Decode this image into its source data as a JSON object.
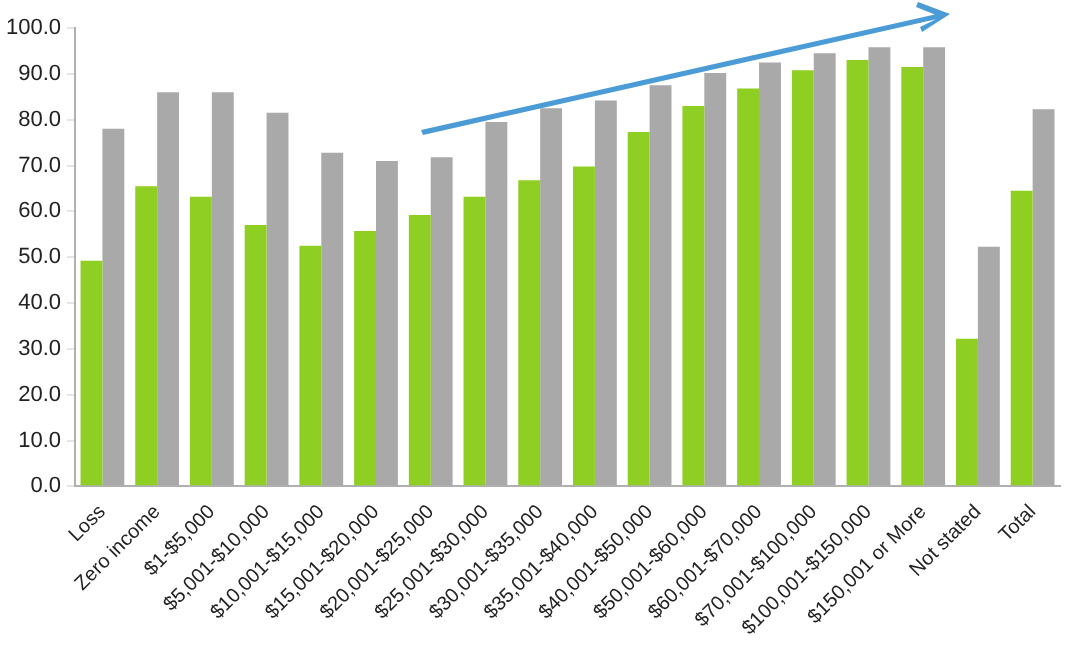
{
  "chart_data": {
    "type": "bar",
    "categories": [
      "Loss",
      "Zero income",
      "$1-$5,000",
      "$5,001-$10,000",
      "$10,001-$15,000",
      "$15,001-$20,000",
      "$20,001-$25,000",
      "$25,001-$30,000",
      "$30,001-$35,000",
      "$35,001-$40,000",
      "$40,001-$50,000",
      "$50,001-$60,000",
      "$60,001-$70,000",
      "$70,001-$100,000",
      "$100,001-$150,000",
      "$150,001 or More",
      "Not stated",
      "Total"
    ],
    "series": [
      {
        "color": "#8fce23",
        "values": [
          49.2,
          65.5,
          63.2,
          57.0,
          52.5,
          55.7,
          59.2,
          63.2,
          66.8,
          69.8,
          77.3,
          83.0,
          86.8,
          90.8,
          93.0,
          91.5,
          32.2,
          64.5
        ]
      },
      {
        "color": "#a9a9a9",
        "values": [
          78.0,
          86.0,
          86.0,
          81.5,
          72.8,
          71.0,
          71.8,
          79.5,
          82.5,
          84.2,
          87.5,
          90.2,
          92.5,
          94.5,
          95.8,
          95.8,
          52.3,
          82.3
        ]
      }
    ],
    "ylim": [
      0,
      100
    ],
    "yticks": [
      {
        "value": 0,
        "label": "0.0"
      },
      {
        "value": 10,
        "label": "10.0"
      },
      {
        "value": 20,
        "label": "20.0"
      },
      {
        "value": 30,
        "label": "30.0"
      },
      {
        "value": 40,
        "label": "40.0"
      },
      {
        "value": 50,
        "label": "50.0"
      },
      {
        "value": 60,
        "label": "60.0"
      },
      {
        "value": 70,
        "label": "70.0"
      },
      {
        "value": 80,
        "label": "80.0"
      },
      {
        "value": 90,
        "label": "90.0"
      },
      {
        "value": 100,
        "label": "100.0"
      }
    ],
    "grid": false,
    "legend": false
  }
}
